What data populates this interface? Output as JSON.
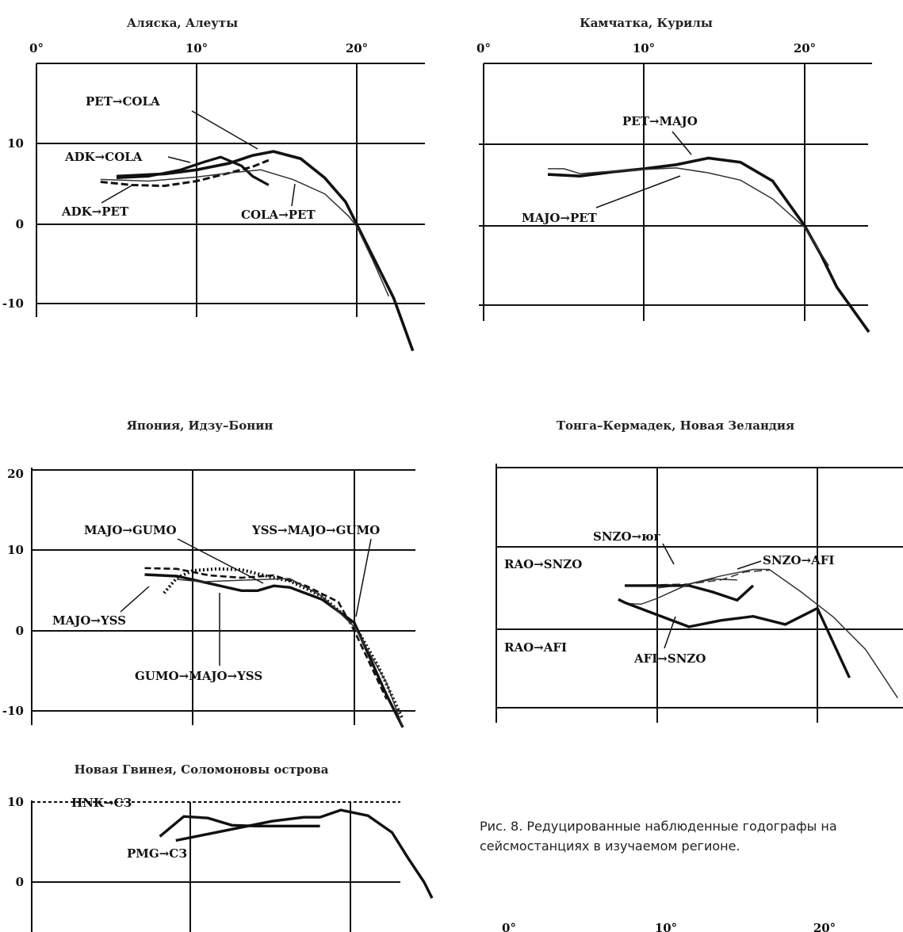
{
  "caption": "Рис. 8. Редуцированные наблюденные годографы на сейсмостанциях в изучаемом регионе.",
  "chart_data": [
    {
      "type": "line",
      "title": "Аляска, Алеуты",
      "xticks": [
        "0°",
        "10°",
        "20°"
      ],
      "yticks": [
        "10",
        "0",
        "-10"
      ],
      "xlim": [
        0,
        24
      ],
      "ylim": [
        -16,
        20
      ],
      "series": [
        {
          "name": "PET→COLA",
          "points": [
            [
              5,
              6
            ],
            [
              8,
              6.3
            ],
            [
              10,
              6.8
            ],
            [
              12,
              7.6
            ],
            [
              13.5,
              8.6
            ],
            [
              14.8,
              9.1
            ],
            [
              16.5,
              8.2
            ],
            [
              18,
              5.8
            ],
            [
              19.3,
              2.8
            ],
            [
              20,
              0
            ],
            [
              21,
              -4
            ],
            [
              22.3,
              -9.2
            ],
            [
              23.5,
              -15.8
            ]
          ]
        },
        {
          "name": "ADK→COLA",
          "points": [
            [
              5,
              5.8
            ],
            [
              7,
              6
            ],
            [
              9,
              6.8
            ],
            [
              10.5,
              7.8
            ],
            [
              11.5,
              8.4
            ],
            [
              12.8,
              7.3
            ],
            [
              13.5,
              6
            ],
            [
              14.5,
              4.9
            ]
          ]
        },
        {
          "name": "ADK→PET",
          "points": [
            [
              4,
              5.3
            ],
            [
              6,
              4.9
            ],
            [
              8,
              4.8
            ],
            [
              10,
              5.4
            ],
            [
              12,
              6.4
            ],
            [
              13.5,
              7.2
            ],
            [
              14.5,
              8
            ]
          ]
        },
        {
          "name": "COLA→PET",
          "points": [
            [
              4,
              5.6
            ],
            [
              7,
              5.4
            ],
            [
              10,
              5.9
            ],
            [
              12,
              6.4
            ],
            [
              14,
              6.8
            ],
            [
              16,
              5.6
            ],
            [
              18,
              3.8
            ],
            [
              19.5,
              1
            ],
            [
              20,
              -0.3
            ],
            [
              21,
              -4.5
            ],
            [
              22,
              -9
            ]
          ]
        }
      ]
    },
    {
      "type": "line",
      "title": "Камчатка, Курилы",
      "xticks": [
        "0°",
        "10°",
        "20°"
      ],
      "yticks": [],
      "xlim": [
        0,
        24
      ],
      "ylim": [
        -13,
        20
      ],
      "series": [
        {
          "name": "PET→MAJO",
          "points": [
            [
              4,
              6.3
            ],
            [
              6,
              6.1
            ],
            [
              8,
              6.6
            ],
            [
              10,
              7
            ],
            [
              12,
              7.5
            ],
            [
              14,
              8.3
            ],
            [
              16,
              7.8
            ],
            [
              18,
              5.5
            ],
            [
              20,
              0
            ],
            [
              21,
              -3.5
            ],
            [
              22,
              -7.5
            ],
            [
              24,
              -13
            ]
          ]
        },
        {
          "name": "MAJO→PET",
          "points": [
            [
              4,
              7
            ],
            [
              5,
              7
            ],
            [
              6,
              6.4
            ],
            [
              8,
              6.7
            ],
            [
              10,
              6.9
            ],
            [
              12,
              7.1
            ],
            [
              14,
              6.5
            ],
            [
              16,
              5.6
            ],
            [
              18,
              3.3
            ],
            [
              20,
              -0.2
            ],
            [
              21.5,
              -4.9
            ]
          ]
        }
      ]
    },
    {
      "type": "line",
      "title": "Япония, Идзу–Бонин",
      "xticks": [],
      "yticks": [
        "20",
        "10",
        "0",
        "-10"
      ],
      "xlim": [
        0,
        24
      ],
      "ylim": [
        -12,
        21
      ],
      "series": [
        {
          "name": "MAJO→GUMO",
          "points": [
            [
              7,
              7
            ],
            [
              9,
              6.8
            ],
            [
              11,
              5.9
            ],
            [
              13,
              5
            ],
            [
              14,
              5
            ],
            [
              15,
              5.6
            ],
            [
              16,
              5.4
            ],
            [
              18,
              3.9
            ],
            [
              20,
              1
            ],
            [
              22,
              -8
            ],
            [
              23,
              -12
            ]
          ]
        },
        {
          "name": "YSS→MAJO→GUMO",
          "points": [
            [
              7,
              7.8
            ],
            [
              9,
              7.7
            ],
            [
              11,
              6.9
            ],
            [
              13,
              6.6
            ],
            [
              15,
              6.9
            ],
            [
              17,
              5.6
            ],
            [
              19,
              3.6
            ],
            [
              20,
              0
            ],
            [
              22,
              -8.5
            ]
          ]
        },
        {
          "name": "MAJO→YSS",
          "points": [
            [
              8.2,
              4.7
            ],
            [
              9,
              6.6
            ],
            [
              10,
              7.5
            ],
            [
              11.5,
              7.7
            ],
            [
              13,
              7.6
            ],
            [
              15,
              6.6
            ],
            [
              16,
              6.2
            ],
            [
              18,
              4.3
            ],
            [
              20,
              0.8
            ],
            [
              21.5,
              -4.5
            ],
            [
              23,
              -11
            ]
          ]
        },
        {
          "name": "GUMO→MAJO→YSS",
          "points": [
            [
              9,
              6.4
            ],
            [
              10.5,
              6.1
            ],
            [
              13,
              6.3
            ],
            [
              16,
              6.5
            ],
            [
              18,
              4.3
            ],
            [
              20,
              0.5
            ],
            [
              22,
              -6.5
            ],
            [
              23,
              -12
            ]
          ]
        }
      ]
    },
    {
      "type": "line",
      "title": "Тонга–Кермадек, Новая Зеландия",
      "xticks": [],
      "yticks": [],
      "xlim": [
        0,
        24
      ],
      "ylim": [
        -12,
        21
      ],
      "series": [
        {
          "name": "SNZO→юг",
          "points": [
            [
              8,
              5.4
            ],
            [
              12,
              5.6
            ],
            [
              14,
              6.1
            ],
            [
              15.5,
              7.1
            ],
            [
              17,
              7.3
            ]
          ]
        },
        {
          "name": "SNZO→AFI",
          "points": [
            [
              10,
              5.1
            ],
            [
              12,
              5.6
            ],
            [
              14,
              6.6
            ],
            [
              16,
              7.4
            ],
            [
              17,
              7.4
            ],
            [
              19,
              4.6
            ],
            [
              21,
              1.5
            ],
            [
              23,
              -2.5
            ],
            [
              25,
              -8.5
            ]
          ]
        },
        {
          "name": "RAO→SNZO",
          "points": [
            [
              8,
              5.4
            ],
            [
              12,
              5.4
            ],
            [
              13.5,
              4.6
            ],
            [
              15,
              3.6
            ],
            [
              16,
              5.4
            ]
          ]
        },
        {
          "name": "RAO→AFI",
          "points": [
            [
              8,
              3.2
            ],
            [
              9,
              3.1
            ],
            [
              10,
              3.8
            ],
            [
              12,
              5.6
            ],
            [
              13.5,
              6.2
            ],
            [
              15,
              6.1
            ]
          ]
        },
        {
          "name": "AFI→SNZO",
          "points": [
            [
              7.6,
              3.7
            ],
            [
              8,
              3.3
            ],
            [
              10,
              1.8
            ],
            [
              12,
              0.3
            ],
            [
              14,
              1.1
            ],
            [
              16,
              1.6
            ],
            [
              18,
              0.6
            ],
            [
              20,
              2.6
            ],
            [
              22,
              -6
            ]
          ]
        }
      ]
    },
    {
      "type": "line",
      "title": "Новая Гвинея, Соломоновы острова",
      "xticks": [],
      "yticks": [
        "10",
        "0"
      ],
      "xlim": [
        0,
        24
      ],
      "ylim": [
        -3,
        12
      ],
      "series": [
        {
          "name": "HNK→СЗ",
          "points": [
            [
              8,
              5.7
            ],
            [
              9.5,
              8.2
            ],
            [
              11,
              8
            ],
            [
              12.5,
              7.1
            ],
            [
              14,
              7
            ],
            [
              16,
              7
            ],
            [
              18,
              7
            ]
          ]
        },
        {
          "name": "PMG→СЗ",
          "points": [
            [
              9,
              5.2
            ],
            [
              11,
              6
            ],
            [
              13,
              6.8
            ],
            [
              15,
              7.6
            ],
            [
              17,
              8.1
            ],
            [
              18,
              8.1
            ],
            [
              19.3,
              9
            ],
            [
              21,
              8.3
            ],
            [
              22.5,
              6.2
            ],
            [
              23.5,
              3
            ],
            [
              24.5,
              0
            ],
            [
              25,
              -2
            ]
          ]
        }
      ]
    }
  ],
  "detached_axis": {
    "xticks": [
      "0°",
      "10°",
      "20°"
    ]
  }
}
